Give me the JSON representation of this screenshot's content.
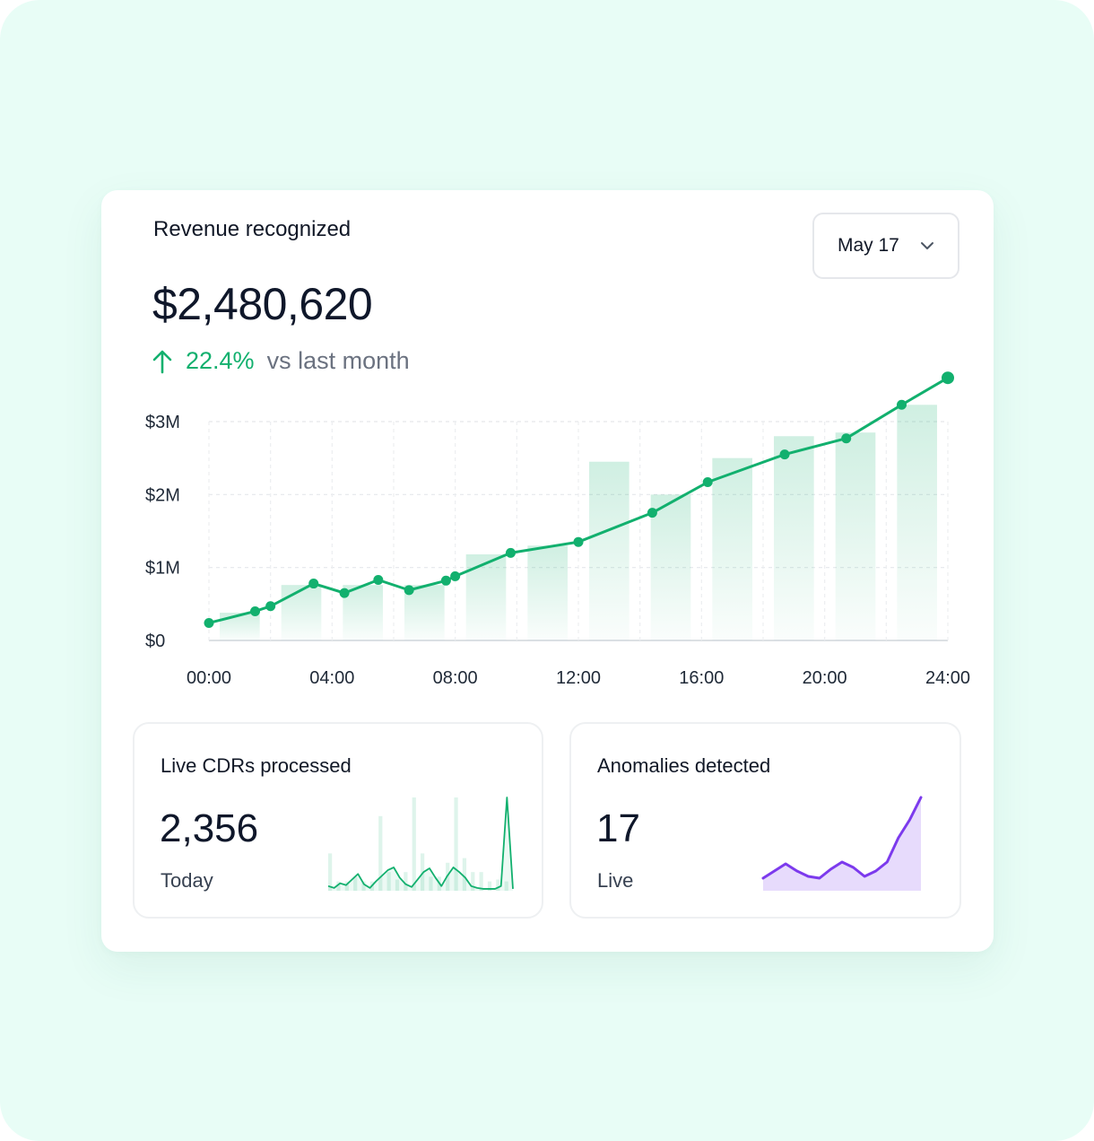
{
  "revenue": {
    "title": "Revenue recognized",
    "value": "$2,480,620",
    "delta_pct": "22.4%",
    "delta_label": "vs last month",
    "delta_color": "#12b06e"
  },
  "date_select": {
    "label": "May 17",
    "icon": "chevron-down-icon"
  },
  "chart_data": {
    "type": "line",
    "ylabels": [
      "$3M",
      "$2M",
      "$1M",
      "$0"
    ],
    "yticks": [
      3000000,
      2000000,
      1000000,
      0
    ],
    "ylim": [
      0,
      3000000
    ],
    "xlabels": [
      "00:00",
      "04:00",
      "08:00",
      "12:00",
      "16:00",
      "20:00",
      "24:00"
    ],
    "xticks": [
      0,
      4,
      8,
      12,
      16,
      20,
      24
    ],
    "xlim": [
      0,
      24
    ],
    "grid": true,
    "line_color": "#12b06e",
    "series": [
      {
        "x": [
          0,
          1.5,
          2,
          3.4,
          4.4,
          5.5,
          6.5,
          7.7,
          8,
          9.8,
          12,
          14.4,
          16.2,
          18.7,
          20.7,
          22.5,
          24
        ],
        "y": [
          240000,
          400000,
          470000,
          780000,
          650000,
          830000,
          690000,
          820000,
          880000,
          1200000,
          1350000,
          1750000,
          2170000,
          2550000,
          2770000,
          3230000,
          3600000
        ]
      }
    ],
    "bars": {
      "x": [
        1,
        3,
        5,
        7,
        9,
        11,
        13,
        15,
        17,
        19,
        21,
        23
      ],
      "y": [
        380000,
        760000,
        760000,
        760000,
        1180000,
        1300000,
        2450000,
        2000000,
        2500000,
        2800000,
        2850000,
        3230000
      ]
    }
  },
  "cdrs": {
    "title": "Live CDRs processed",
    "value": "2,356",
    "sub": "Today",
    "spark_color": "#12b06e",
    "spark_line": [
      5,
      3,
      8,
      6,
      12,
      18,
      7,
      3,
      10,
      16,
      22,
      25,
      14,
      7,
      4,
      12,
      20,
      24,
      14,
      5,
      16,
      25,
      20,
      14,
      5,
      3,
      2,
      2,
      2,
      5,
      100,
      2
    ],
    "spark_bars": [
      40,
      10,
      10,
      15,
      10,
      10,
      80,
      20,
      12,
      20,
      100,
      40,
      15,
      15,
      30,
      100,
      35,
      20,
      20,
      10,
      12,
      10
    ]
  },
  "anomalies": {
    "title": "Anomalies detected",
    "value": "17",
    "sub": "Live",
    "spark_color": "#7c3aed",
    "spark_line": [
      10,
      18,
      26,
      18,
      12,
      10,
      20,
      28,
      22,
      12,
      18,
      28,
      55,
      75,
      100
    ]
  }
}
